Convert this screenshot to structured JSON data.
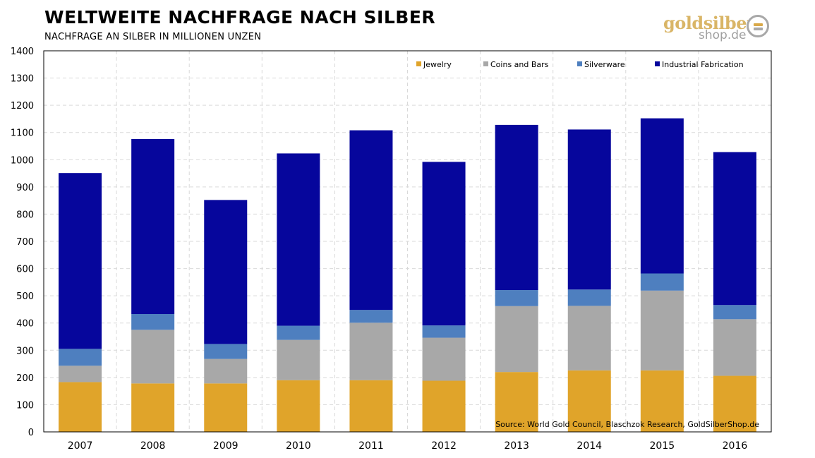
{
  "header": {
    "title": "WELTWEITE NACHFRAGE NACH SILBER",
    "subtitle": "NACHFRAGE AN SILBER IN MILLIONEN UNZEN"
  },
  "logo": {
    "text_main": "goldsilber",
    "text_sub": "shop.de",
    "colors": {
      "gold": "#d9b566",
      "silver": "#a0a0a0"
    }
  },
  "chart_data": {
    "type": "bar",
    "stacked": true,
    "categories": [
      "2007",
      "2008",
      "2009",
      "2010",
      "2011",
      "2012",
      "2013",
      "2014",
      "2015",
      "2016"
    ],
    "series": [
      {
        "name": "Jewelry",
        "color": "#e0a42a",
        "values": [
          183,
          178,
          178,
          190,
          190,
          188,
          220,
          226,
          226,
          206
        ]
      },
      {
        "name": "Coins and Bars",
        "color": "#a8a8a8",
        "values": [
          60,
          197,
          90,
          148,
          211,
          158,
          242,
          237,
          293,
          208
        ]
      },
      {
        "name": "Silverware",
        "color": "#4e7fbf",
        "values": [
          62,
          58,
          55,
          52,
          47,
          45,
          59,
          60,
          63,
          52
        ]
      },
      {
        "name": "Industrial Fabrication",
        "color": "#06069c",
        "values": [
          646,
          643,
          529,
          633,
          660,
          601,
          607,
          588,
          570,
          562
        ]
      }
    ],
    "ylim": [
      0,
      1400
    ],
    "yticks": [
      0,
      100,
      200,
      300,
      400,
      500,
      600,
      700,
      800,
      900,
      1000,
      1100,
      1200,
      1300,
      1400
    ],
    "grid": true,
    "legend_position": "top-right",
    "annotation": "Source: World Gold Council, Blaschzok Research, GoldSilberShop.de"
  }
}
